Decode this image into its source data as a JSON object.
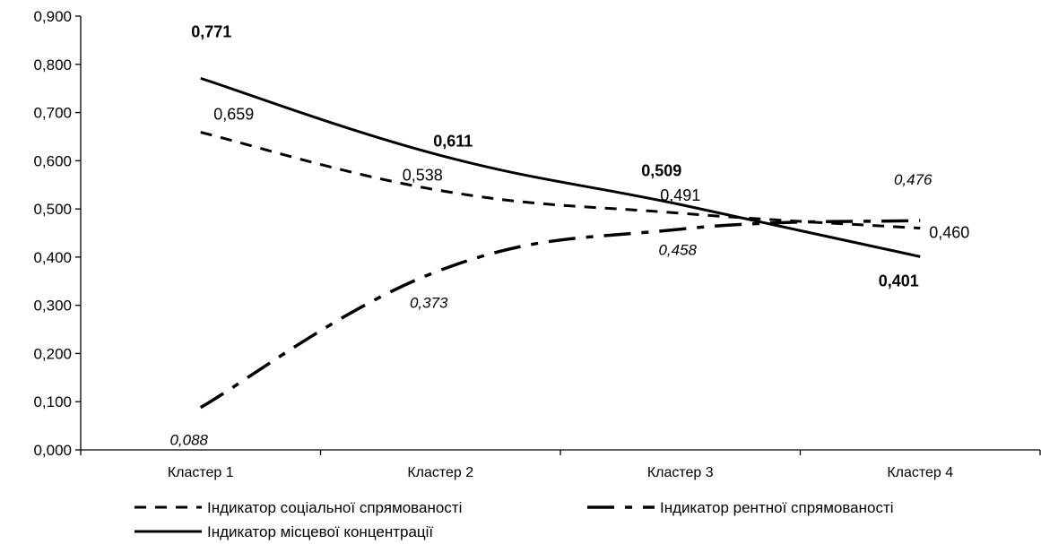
{
  "chart_data": {
    "type": "line",
    "title": "",
    "xlabel": "",
    "ylabel": "",
    "categories": [
      "Кластер 1",
      "Кластер 2",
      "Кластер 3",
      "Кластер 4"
    ],
    "ylim": [
      0,
      0.9
    ],
    "y_ticks": [
      "0,000",
      "0,100",
      "0,200",
      "0,300",
      "0,400",
      "0,500",
      "0,600",
      "0,700",
      "0,800",
      "0,900"
    ],
    "grid": false,
    "legend_position": "bottom",
    "series": [
      {
        "id": "social",
        "name": "Індикатор соціальної спрямованості",
        "line_style": "short-dash",
        "label_style": "normal",
        "values": [
          0.659,
          0.538,
          0.491,
          0.46
        ],
        "labels": [
          "0,659",
          "0,538",
          "0,491",
          "0,460"
        ]
      },
      {
        "id": "rent",
        "name": "Індикатор рентної спрямованості",
        "line_style": "long-dash-dot",
        "label_style": "italic",
        "values": [
          0.088,
          0.373,
          0.458,
          0.476
        ],
        "labels": [
          "0,088",
          "0,373",
          "0,458",
          "0,476"
        ]
      },
      {
        "id": "local",
        "name": "Індикатор місцевої концентрації",
        "line_style": "solid",
        "label_style": "bold",
        "values": [
          0.771,
          0.611,
          0.509,
          0.401
        ],
        "labels": [
          "0,771",
          "0,611",
          "0,509",
          "0,401"
        ]
      }
    ],
    "colors": {
      "line": "#000000",
      "background": "#ffffff"
    }
  }
}
